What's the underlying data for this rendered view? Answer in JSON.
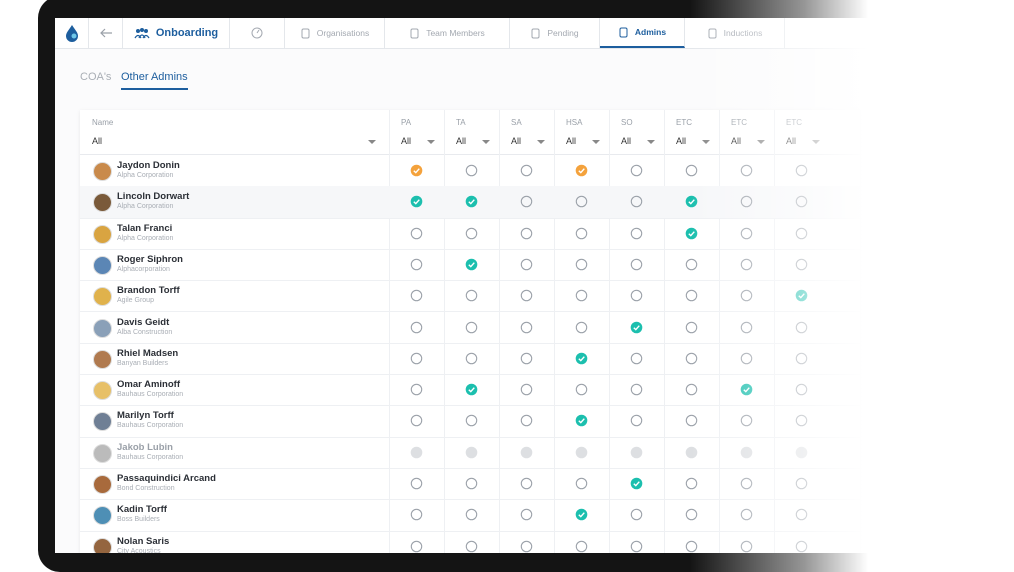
{
  "nav": {
    "brand": "Onboarding",
    "items": [
      "Organisations",
      "Team Members",
      "Pending",
      "Admins",
      "Inductions"
    ],
    "active": 3
  },
  "tabs": {
    "items": [
      "COA's",
      "Other Admins"
    ],
    "active": 1
  },
  "table": {
    "name_header": "Name",
    "filter": "All",
    "columns": [
      "PA",
      "TA",
      "SA",
      "HSA",
      "SO",
      "ETC",
      "ETC",
      "ETC"
    ],
    "rows": [
      {
        "name": "Jaydon Donin",
        "company": "Alpha Corporation",
        "status": [
          "orange",
          "empty",
          "empty",
          "orange",
          "empty",
          "empty",
          "empty",
          "empty"
        ]
      },
      {
        "name": "Lincoln Dorwart",
        "company": "Alpha Corporation",
        "status": [
          "teal",
          "teal",
          "empty",
          "empty",
          "empty",
          "teal",
          "empty",
          "empty"
        ]
      },
      {
        "name": "Talan Franci",
        "company": "Alpha Corporation",
        "status": [
          "empty",
          "empty",
          "empty",
          "empty",
          "empty",
          "teal",
          "empty",
          "empty"
        ]
      },
      {
        "name": "Roger Siphron",
        "company": "Alphacorporation",
        "status": [
          "empty",
          "teal",
          "empty",
          "empty",
          "empty",
          "empty",
          "empty",
          "empty"
        ]
      },
      {
        "name": "Brandon Torff",
        "company": "Agile Group",
        "status": [
          "empty",
          "empty",
          "empty",
          "empty",
          "empty",
          "empty",
          "empty",
          "teal"
        ]
      },
      {
        "name": "Davis Geidt",
        "company": "Alba Construction",
        "status": [
          "empty",
          "empty",
          "empty",
          "empty",
          "teal",
          "empty",
          "empty",
          "empty"
        ]
      },
      {
        "name": "Rhiel Madsen",
        "company": "Banyan Builders",
        "status": [
          "empty",
          "empty",
          "empty",
          "teal",
          "empty",
          "empty",
          "empty",
          "empty"
        ]
      },
      {
        "name": "Omar Aminoff",
        "company": "Bauhaus Corporation",
        "status": [
          "empty",
          "teal",
          "empty",
          "empty",
          "empty",
          "empty",
          "teal",
          "empty"
        ]
      },
      {
        "name": "Marilyn Torff",
        "company": "Bauhaus Corporation",
        "status": [
          "empty",
          "empty",
          "empty",
          "teal",
          "empty",
          "empty",
          "empty",
          "empty"
        ]
      },
      {
        "name": "Jakob Lubin",
        "company": "Bauhaus Corporation",
        "status": [
          "disabled",
          "disabled",
          "disabled",
          "disabled",
          "disabled",
          "disabled",
          "disabled",
          "disabled"
        ]
      },
      {
        "name": "Passaquindici Arcand",
        "company": "Bond Construction",
        "status": [
          "empty",
          "empty",
          "empty",
          "empty",
          "teal",
          "empty",
          "empty",
          "empty"
        ]
      },
      {
        "name": "Kadin Torff",
        "company": "Boss Builders",
        "status": [
          "empty",
          "empty",
          "empty",
          "teal",
          "empty",
          "empty",
          "empty",
          "empty"
        ]
      },
      {
        "name": "Nolan Saris",
        "company": "City Acoustics",
        "status": [
          "empty",
          "empty",
          "empty",
          "empty",
          "empty",
          "empty",
          "empty",
          "empty"
        ]
      }
    ]
  }
}
